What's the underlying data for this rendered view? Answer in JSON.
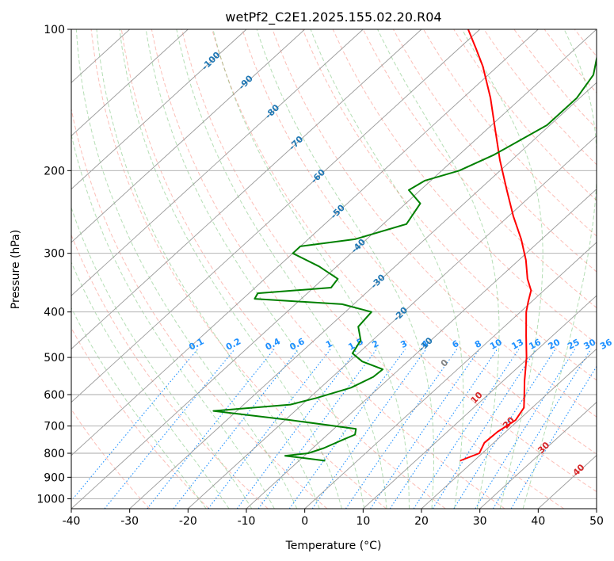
{
  "chart_data": {
    "type": "line",
    "title": "wetPf2_C2E1.2025.155.02.20.R04",
    "xlabel": "Temperature (°C)",
    "ylabel": "Pressure (hPa)",
    "xlim": [
      -40,
      50
    ],
    "ylim": [
      1050,
      100
    ],
    "y_scale": "log",
    "grid": true,
    "x_ticks": [
      -40,
      -30,
      -20,
      -10,
      0,
      10,
      20,
      30,
      40,
      50
    ],
    "y_ticks": [
      1000,
      900,
      800,
      700,
      600,
      500,
      400,
      300,
      200,
      100
    ],
    "colors": {
      "temperature": "#ff0000",
      "dewpoint": "#008000",
      "dry_adiabats": "#fa8072",
      "moist_adiabats": "#2ca02c",
      "mixing_ratio": "#1e90ff",
      "isotherm_labels": "#1f77b4"
    },
    "series": [
      {
        "id": "temperature",
        "color": "#ff0000",
        "points": [
          {
            "p": 830,
            "t": 17.6
          },
          {
            "p": 800,
            "t": 19.5
          },
          {
            "p": 760,
            "t": 18.4
          },
          {
            "p": 720,
            "t": 18.6
          },
          {
            "p": 680,
            "t": 19.5
          },
          {
            "p": 640,
            "t": 18.6
          },
          {
            "p": 600,
            "t": 16.2
          },
          {
            "p": 560,
            "t": 13.6
          },
          {
            "p": 500,
            "t": 9.6
          },
          {
            "p": 450,
            "t": 5.5
          },
          {
            "p": 400,
            "t": 1.0
          },
          {
            "p": 380,
            "t": -0.6
          },
          {
            "p": 360,
            "t": -2.2
          },
          {
            "p": 340,
            "t": -5.0
          },
          {
            "p": 310,
            "t": -8.8
          },
          {
            "p": 280,
            "t": -13.5
          },
          {
            "p": 250,
            "t": -19.2
          },
          {
            "p": 220,
            "t": -25.2
          },
          {
            "p": 190,
            "t": -32.0
          },
          {
            "p": 160,
            "t": -39.5
          },
          {
            "p": 140,
            "t": -45.3
          },
          {
            "p": 120,
            "t": -52.5
          },
          {
            "p": 110,
            "t": -57.0
          },
          {
            "p": 100,
            "t": -62.0
          }
        ]
      },
      {
        "id": "dewpoint",
        "color": "#008000",
        "points": [
          {
            "p": 830,
            "t": -5.5
          },
          {
            "p": 820,
            "t": -9.3
          },
          {
            "p": 810,
            "t": -13.3
          },
          {
            "p": 800,
            "t": -9.8
          },
          {
            "p": 780,
            "t": -8.1
          },
          {
            "p": 750,
            "t": -6.5
          },
          {
            "p": 730,
            "t": -5.3
          },
          {
            "p": 710,
            "t": -6.2
          },
          {
            "p": 680,
            "t": -19.0
          },
          {
            "p": 650,
            "t": -34.0
          },
          {
            "p": 630,
            "t": -22.0
          },
          {
            "p": 610,
            "t": -18.8
          },
          {
            "p": 580,
            "t": -14.8
          },
          {
            "p": 550,
            "t": -13.0
          },
          {
            "p": 530,
            "t": -12.8
          },
          {
            "p": 510,
            "t": -17.8
          },
          {
            "p": 490,
            "t": -21.0
          },
          {
            "p": 460,
            "t": -22.0
          },
          {
            "p": 430,
            "t": -25.0
          },
          {
            "p": 400,
            "t": -25.5
          },
          {
            "p": 385,
            "t": -32.0
          },
          {
            "p": 375,
            "t": -48.0
          },
          {
            "p": 365,
            "t": -48.5
          },
          {
            "p": 355,
            "t": -37.0
          },
          {
            "p": 340,
            "t": -37.5
          },
          {
            "p": 320,
            "t": -43.0
          },
          {
            "p": 300,
            "t": -50.0
          },
          {
            "p": 290,
            "t": -50.0
          },
          {
            "p": 280,
            "t": -42.0
          },
          {
            "p": 260,
            "t": -36.0
          },
          {
            "p": 235,
            "t": -37.5
          },
          {
            "p": 220,
            "t": -42.0
          },
          {
            "p": 210,
            "t": -41.0
          },
          {
            "p": 200,
            "t": -37.0
          },
          {
            "p": 185,
            "t": -34.0
          },
          {
            "p": 160,
            "t": -30.5
          },
          {
            "p": 140,
            "t": -30.5
          },
          {
            "p": 125,
            "t": -32.0
          },
          {
            "p": 110,
            "t": -36.0
          },
          {
            "p": 100,
            "t": -39.3
          }
        ]
      }
    ],
    "isotherm_labels": [
      "-100",
      "-90",
      "-80",
      "-70",
      "-60",
      "-50",
      "-40",
      "-30",
      "-20",
      "-10"
    ],
    "mixing_ratio_labels": [
      "0.1",
      "0.2",
      "0.4",
      "0.6",
      "1",
      "1.5",
      "2",
      "3",
      "4",
      "6",
      "8",
      "10",
      "13",
      "16",
      "20",
      "25",
      "30",
      "36"
    ],
    "theta_e_labels": [
      "0",
      "10",
      "20",
      "30",
      "40"
    ]
  }
}
